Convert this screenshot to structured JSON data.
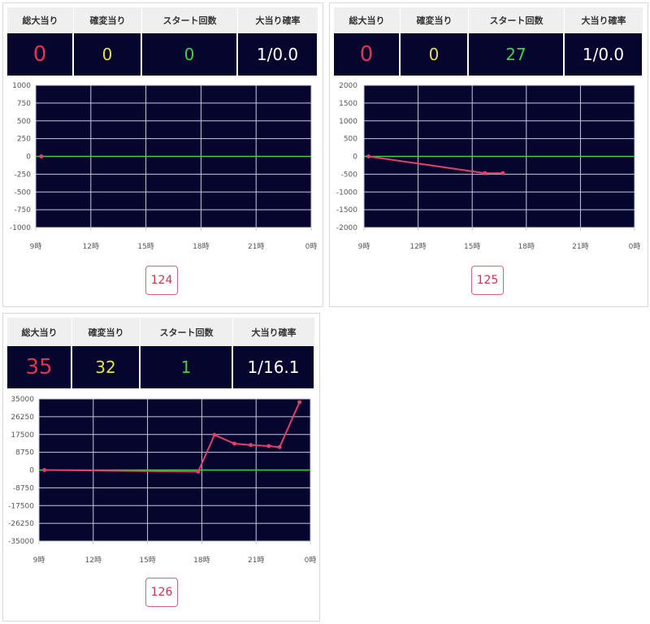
{
  "headers": [
    "総大当り",
    "確変当り",
    "スタート回数",
    "大当り確率"
  ],
  "panels": [
    {
      "stats": {
        "total": "0",
        "kakuhen": "0",
        "start": "0",
        "rate": "1/0.0"
      },
      "button": "124",
      "chart": {
        "type": "line",
        "x_ticks": [
          "9時",
          "12時",
          "15時",
          "18時",
          "21時",
          "0時"
        ],
        "xlim": [
          9,
          24
        ],
        "y_ticks": [
          "1000",
          "750",
          "500",
          "250",
          "0",
          "-250",
          "-500",
          "-750",
          "-1000"
        ],
        "ylim": [
          -1000,
          1000
        ],
        "grid": true,
        "points": [
          [
            9.3,
            0
          ]
        ]
      }
    },
    {
      "stats": {
        "total": "0",
        "kakuhen": "0",
        "start": "27",
        "rate": "1/0.0"
      },
      "button": "125",
      "chart": {
        "type": "line",
        "x_ticks": [
          "9時",
          "12時",
          "15時",
          "18時",
          "21時",
          "0時"
        ],
        "xlim": [
          9,
          24
        ],
        "y_ticks": [
          "2000",
          "1500",
          "1000",
          "500",
          "0",
          "-500",
          "-1000",
          "-1500",
          "-2000"
        ],
        "ylim": [
          -2000,
          2000
        ],
        "grid": true,
        "points": [
          [
            9.25,
            0
          ],
          [
            15.7,
            -470
          ],
          [
            16.7,
            -470
          ]
        ]
      }
    },
    {
      "stats": {
        "total": "35",
        "kakuhen": "32",
        "start": "1",
        "rate": "1/16.1"
      },
      "button": "126",
      "chart": {
        "type": "line",
        "x_ticks": [
          "9時",
          "12時",
          "15時",
          "18時",
          "21時",
          "0時"
        ],
        "xlim": [
          9,
          24
        ],
        "y_ticks": [
          "35000",
          "26250",
          "17500",
          "8750",
          "0",
          "-8750",
          "-17500",
          "-26250",
          "-35000"
        ],
        "ylim": [
          -35000,
          35000
        ],
        "grid": true,
        "points": [
          [
            9.3,
            0
          ],
          [
            17.8,
            -800
          ],
          [
            18.7,
            17300
          ],
          [
            19.8,
            13000
          ],
          [
            20.7,
            12300
          ],
          [
            21.7,
            11800
          ],
          [
            22.3,
            11300
          ],
          [
            23.4,
            33400
          ]
        ]
      }
    }
  ],
  "colors": {
    "plot_bg": "#05052e",
    "zero_line": "#4ccc4c",
    "series": "#e0406a"
  }
}
